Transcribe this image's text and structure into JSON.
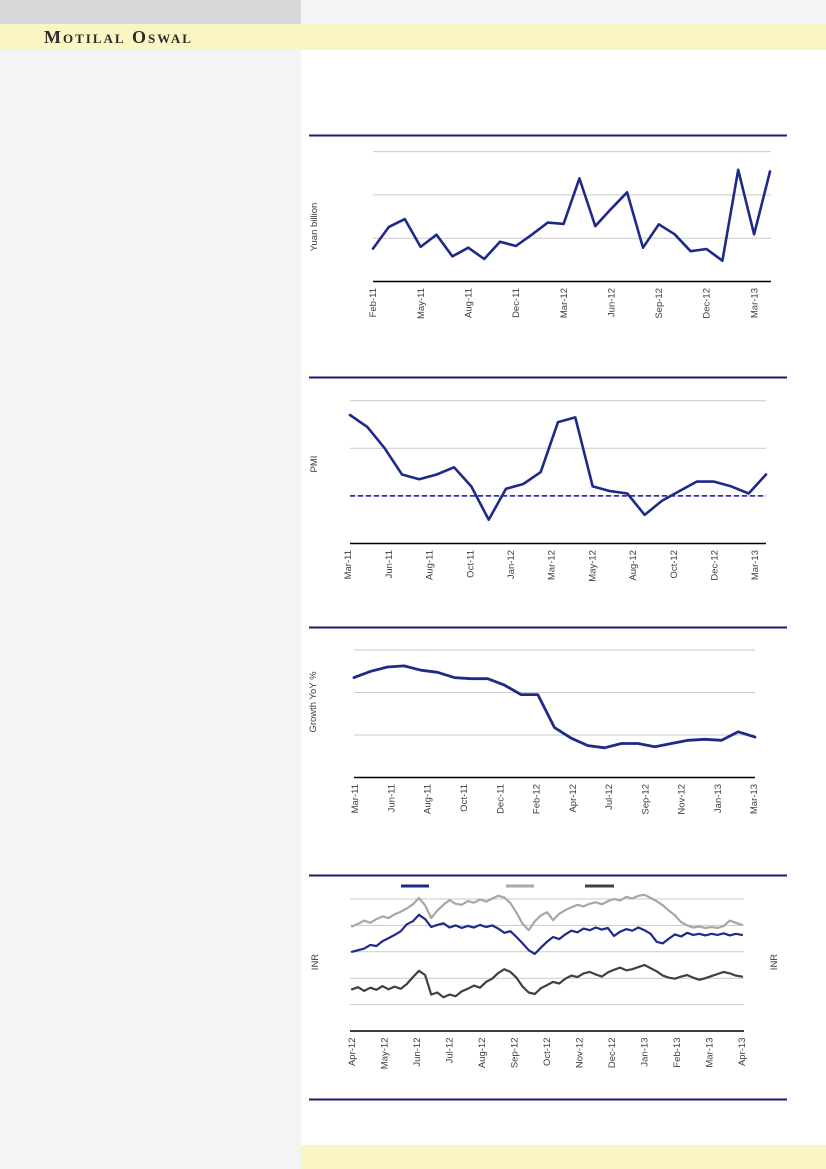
{
  "brand": {
    "name": "Motilal Oswal"
  },
  "theme": {
    "band_yellow": "#fbf4c3",
    "sidebar_gray": "#f4f4f5",
    "topbar_gray": "#d8d8d8",
    "rule_navy": "#1b1b6f",
    "gridline_gray": "#c9c9c9",
    "axis_black": "#000000",
    "series_navy": "#1e2a87",
    "series_gray": "#a7a7a7",
    "series_dark": "#404040",
    "tick_text": "#3d3d3d"
  },
  "chart_data": [
    {
      "type": "line",
      "title": "",
      "ylabel": "Yuan billion",
      "x_tick_labels": [
        "Feb-11",
        "May-11",
        "Aug-11",
        "Dec-11",
        "Mar-12",
        "Jun-12",
        "Sep-12",
        "Dec-12",
        "Mar-13"
      ],
      "ylim": [
        0,
        1500
      ],
      "gridlines": [
        500,
        1000,
        1500
      ],
      "grid": "horizontal-only",
      "legend_position": "none",
      "series": [
        {
          "name": "",
          "color": "#1e2a87",
          "values": [
            380,
            630,
            720,
            400,
            540,
            290,
            390,
            260,
            460,
            410,
            540,
            680,
            665,
            1190,
            640,
            840,
            1030,
            390,
            660,
            545,
            350,
            375,
            240,
            1290,
            545,
            1270
          ]
        }
      ]
    },
    {
      "type": "line",
      "title": "",
      "ylabel": "PMI",
      "x_tick_labels": [
        "Mar-11",
        "Jun-11",
        "Aug-11",
        "Oct-11",
        "Jan-12",
        "Mar-12",
        "May-12",
        "Aug-12",
        "Oct-12",
        "Dec-12",
        "Mar-13"
      ],
      "ylim": [
        48,
        54.5
      ],
      "gridlines": [
        50,
        52,
        54
      ],
      "reference_line": 50,
      "reference_style": "dashed-navy",
      "grid": "horizontal-only",
      "legend_position": "none",
      "series": [
        {
          "name": "",
          "color": "#1e2a87",
          "values": [
            53.4,
            52.9,
            52.0,
            50.9,
            50.7,
            50.9,
            51.2,
            50.4,
            49.0,
            50.3,
            50.5,
            51.0,
            53.1,
            53.3,
            50.4,
            50.2,
            50.1,
            49.2,
            49.8,
            50.2,
            50.6,
            50.6,
            50.4,
            50.1,
            50.9
          ]
        }
      ]
    },
    {
      "type": "line",
      "title": "",
      "ylabel": "Growth YoY %",
      "x_tick_labels": [
        "Mar-11",
        "Jun-11",
        "Aug-11",
        "Oct-11",
        "Dec-11",
        "Feb-12",
        "Apr-12",
        "Jul-12",
        "Sep-12",
        "Nov-12",
        "Jan-13",
        "Mar-13"
      ],
      "ylim": [
        4,
        16
      ],
      "gridlines": [
        8,
        12,
        16
      ],
      "grid": "horizontal-only",
      "legend_position": "none",
      "series": [
        {
          "name": "",
          "color": "#1e2a87",
          "values": [
            13.4,
            14.0,
            14.4,
            14.5,
            14.1,
            13.9,
            13.4,
            13.3,
            13.3,
            12.7,
            11.8,
            11.8,
            8.7,
            7.7,
            7.0,
            6.8,
            7.2,
            7.2,
            6.9,
            7.2,
            7.5,
            7.6,
            7.5,
            8.3,
            7.8
          ]
        }
      ]
    },
    {
      "type": "line",
      "title": "",
      "ylabel": "INR",
      "ylabel_right": "INR",
      "x_tick_labels": [
        "Apr-12",
        "May-12",
        "Jun-12",
        "Jul-12",
        "Aug-12",
        "Sep-12",
        "Oct-12",
        "Nov-12",
        "Dec-12",
        "Jan-13",
        "Feb-13",
        "Mar-13",
        "Apr-13"
      ],
      "ylim": [
        40,
        67.5
      ],
      "gridlines": [
        45,
        50,
        55,
        60,
        65
      ],
      "grid": "horizontal-only",
      "legend_position": "top",
      "legend": [
        {
          "label": "",
          "color": "#1e2a87"
        },
        {
          "label": "",
          "color": "#a7a7a7"
        },
        {
          "label": "",
          "color": "#404040"
        }
      ],
      "series": [
        {
          "name": "",
          "color": "#1e2a87",
          "values": [
            55.0,
            55.3,
            55.6,
            56.3,
            56.1,
            57.0,
            57.6,
            58.2,
            58.9,
            60.2,
            60.8,
            62.0,
            61.2,
            59.7,
            60.1,
            60.4,
            59.6,
            60.0,
            59.5,
            59.9,
            59.6,
            60.1,
            59.7,
            60.0,
            59.4,
            58.6,
            58.9,
            57.8,
            56.6,
            55.3,
            54.6,
            55.8,
            56.9,
            57.8,
            57.4,
            58.3,
            59.0,
            58.7,
            59.4,
            59.1,
            59.6,
            59.2,
            59.5,
            58.0,
            58.8,
            59.3,
            59.0,
            59.6,
            59.1,
            58.4,
            56.9,
            56.6,
            57.5,
            58.3,
            57.9,
            58.6,
            58.2,
            58.4,
            58.1,
            58.4,
            58.2,
            58.5,
            58.1,
            58.4,
            58.2
          ]
        },
        {
          "name": "",
          "color": "#a7a7a7",
          "values": [
            59.8,
            60.3,
            60.9,
            60.5,
            61.2,
            61.7,
            61.4,
            62.1,
            62.6,
            63.2,
            64.0,
            65.2,
            63.8,
            61.4,
            62.8,
            63.9,
            64.8,
            64.1,
            63.9,
            64.6,
            64.3,
            64.9,
            64.5,
            65.1,
            65.6,
            65.3,
            64.2,
            62.4,
            60.3,
            59.1,
            60.8,
            61.9,
            62.5,
            61.0,
            62.2,
            62.9,
            63.4,
            63.9,
            63.6,
            64.1,
            64.4,
            64.0,
            64.6,
            65.0,
            64.7,
            65.4,
            65.1,
            65.6,
            65.8,
            65.2,
            64.6,
            63.8,
            62.8,
            61.9,
            60.6,
            60.0,
            59.6,
            59.8,
            59.5,
            59.7,
            59.5,
            59.9,
            60.9,
            60.5,
            60.1
          ]
        },
        {
          "name": "",
          "color": "#404040",
          "values": [
            47.9,
            48.3,
            47.6,
            48.2,
            47.8,
            48.5,
            47.9,
            48.4,
            48.0,
            48.9,
            50.2,
            51.4,
            50.6,
            46.9,
            47.3,
            46.4,
            46.9,
            46.6,
            47.5,
            48.0,
            48.6,
            48.2,
            49.3,
            49.9,
            51.0,
            51.7,
            51.2,
            50.1,
            48.4,
            47.3,
            47.0,
            48.1,
            48.7,
            49.3,
            49.0,
            49.9,
            50.5,
            50.2,
            50.9,
            51.2,
            50.7,
            50.3,
            51.1,
            51.6,
            52.0,
            51.5,
            51.7,
            52.1,
            52.5,
            51.9,
            51.3,
            50.5,
            50.1,
            49.9,
            50.3,
            50.6,
            50.1,
            49.7,
            50.0,
            50.4,
            50.8,
            51.2,
            50.9,
            50.5,
            50.3
          ]
        }
      ]
    }
  ]
}
